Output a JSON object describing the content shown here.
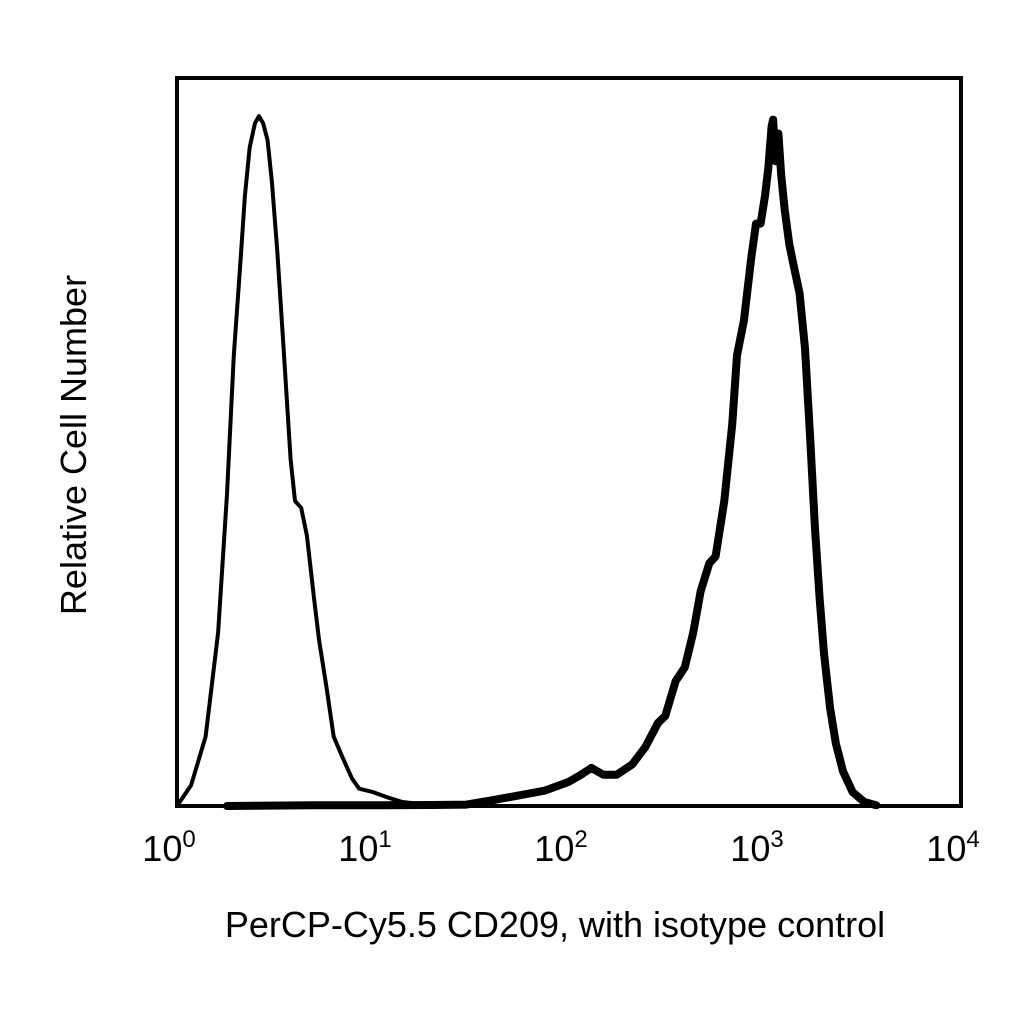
{
  "chart_data": {
    "type": "area",
    "xlabel": "PerCP-Cy5.5 CD209, with isotype control",
    "ylabel": "Relative Cell Number",
    "xscale": "log",
    "xlim": [
      1,
      10000
    ],
    "ylim": [
      0,
      1.05
    ],
    "grid": false,
    "legend": "none",
    "x_ticks": [
      {
        "base": "10",
        "exp": "0",
        "value": 1
      },
      {
        "base": "10",
        "exp": "1",
        "value": 10
      },
      {
        "base": "10",
        "exp": "2",
        "value": 100
      },
      {
        "base": "10",
        "exp": "3",
        "value": 1000
      },
      {
        "base": "10",
        "exp": "4",
        "value": 10000
      }
    ],
    "series": [
      {
        "style": "thin",
        "color": "#000000",
        "points": [
          [
            1.0,
            0.0
          ],
          [
            1.18,
            0.03
          ],
          [
            1.4,
            0.1
          ],
          [
            1.62,
            0.25
          ],
          [
            1.8,
            0.45
          ],
          [
            1.95,
            0.65
          ],
          [
            2.1,
            0.78
          ],
          [
            2.22,
            0.88
          ],
          [
            2.35,
            0.95
          ],
          [
            2.5,
            0.985
          ],
          [
            2.62,
            0.995
          ],
          [
            2.75,
            0.985
          ],
          [
            2.9,
            0.96
          ],
          [
            3.05,
            0.9
          ],
          [
            3.25,
            0.8
          ],
          [
            3.5,
            0.66
          ],
          [
            3.8,
            0.5
          ],
          [
            4.0,
            0.44
          ],
          [
            4.3,
            0.43
          ],
          [
            4.6,
            0.39
          ],
          [
            5.0,
            0.3
          ],
          [
            5.3,
            0.24
          ],
          [
            5.8,
            0.17
          ],
          [
            6.3,
            0.1
          ],
          [
            7.0,
            0.07
          ],
          [
            7.8,
            0.04
          ],
          [
            8.5,
            0.025
          ],
          [
            10.0,
            0.02
          ],
          [
            12.0,
            0.012
          ],
          [
            14.0,
            0.006
          ],
          [
            17.0,
            0.003
          ],
          [
            30.0,
            0.002
          ],
          [
            40.0,
            0.001
          ]
        ]
      },
      {
        "style": "thick",
        "color": "#000000",
        "points": [
          [
            1.8,
            0.0
          ],
          [
            5.0,
            0.001
          ],
          [
            10.0,
            0.001
          ],
          [
            20.0,
            0.0015
          ],
          [
            30.0,
            0.002
          ],
          [
            40.0,
            0.008
          ],
          [
            55.0,
            0.015
          ],
          [
            75.0,
            0.022
          ],
          [
            100.0,
            0.035
          ],
          [
            115.0,
            0.045
          ],
          [
            130.0,
            0.055
          ],
          [
            150.0,
            0.045
          ],
          [
            175.0,
            0.045
          ],
          [
            210.0,
            0.06
          ],
          [
            245.0,
            0.085
          ],
          [
            285.0,
            0.12
          ],
          [
            310.0,
            0.13
          ],
          [
            350.0,
            0.18
          ],
          [
            390.0,
            0.2
          ],
          [
            430.0,
            0.25
          ],
          [
            470.0,
            0.31
          ],
          [
            520.0,
            0.35
          ],
          [
            560.0,
            0.36
          ],
          [
            620.0,
            0.44
          ],
          [
            680.0,
            0.55
          ],
          [
            720.0,
            0.65
          ],
          [
            780.0,
            0.7
          ],
          [
            850.0,
            0.79
          ],
          [
            900.0,
            0.84
          ],
          [
            950.0,
            0.84
          ],
          [
            1000.0,
            0.88
          ],
          [
            1040.0,
            0.92
          ],
          [
            1080.0,
            0.98
          ],
          [
            1100.0,
            0.99
          ],
          [
            1130.0,
            0.93
          ],
          [
            1170.0,
            0.97
          ],
          [
            1210.0,
            0.91
          ],
          [
            1260.0,
            0.86
          ],
          [
            1330.0,
            0.81
          ],
          [
            1400.0,
            0.78
          ],
          [
            1500.0,
            0.74
          ],
          [
            1600.0,
            0.66
          ],
          [
            1700.0,
            0.53
          ],
          [
            1800.0,
            0.4
          ],
          [
            1900.0,
            0.3
          ],
          [
            2000.0,
            0.22
          ],
          [
            2150.0,
            0.14
          ],
          [
            2300.0,
            0.09
          ],
          [
            2500.0,
            0.05
          ],
          [
            2800.0,
            0.02
          ],
          [
            3200.0,
            0.006
          ],
          [
            3700.0,
            0.001
          ]
        ]
      }
    ]
  }
}
